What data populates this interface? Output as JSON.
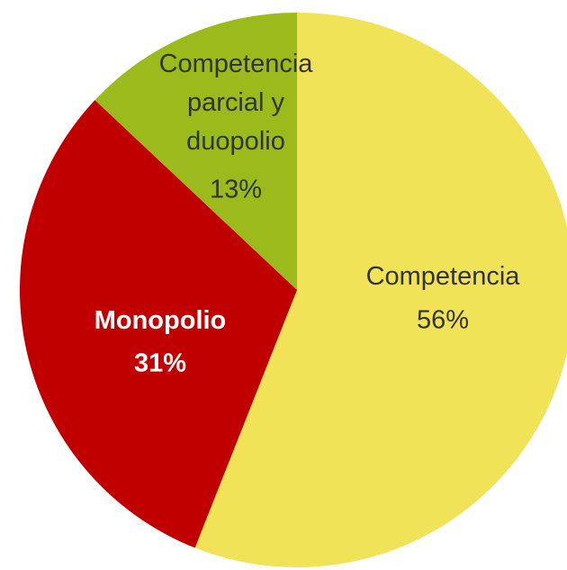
{
  "chart_data": {
    "type": "pie",
    "categories": [
      "Competencia",
      "Monopolio",
      "Competencia parcial y duopolio"
    ],
    "values": [
      56,
      31,
      13
    ],
    "value_labels": [
      "56%",
      "31%",
      "13%"
    ],
    "colors": [
      "#f0e358",
      "#c00000",
      "#9bbb1c"
    ]
  }
}
